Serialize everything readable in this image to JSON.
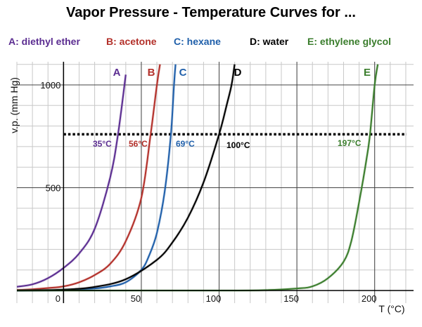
{
  "chart_data": {
    "type": "line",
    "title": "Vapor Pressure - Temperature Curves for ...",
    "xlabel": "T (°C)",
    "ylabel": "v.p. (mm Hg)",
    "xlim": [
      -30,
      225
    ],
    "ylim": [
      -10,
      1100
    ],
    "xticks": [
      0,
      50,
      100,
      150,
      200
    ],
    "yticks": [
      500,
      1000
    ],
    "grid": true,
    "reference_line": {
      "y": 760,
      "style": "dotted"
    },
    "legend_position": "top",
    "series": [
      {
        "letter": "A",
        "name": "A: diethyl ether",
        "color": "#5b2d91",
        "boiling_label": "35°C",
        "points": [
          [
            -30,
            18
          ],
          [
            -20,
            30
          ],
          [
            -10,
            60
          ],
          [
            0,
            110
          ],
          [
            10,
            180
          ],
          [
            20,
            300
          ],
          [
            30,
            550
          ],
          [
            35,
            760
          ],
          [
            40,
            1050
          ]
        ]
      },
      {
        "letter": "B",
        "name": "B: acetone",
        "color": "#b3302a",
        "boiling_label": "56°C",
        "points": [
          [
            -30,
            3
          ],
          [
            -20,
            6
          ],
          [
            -10,
            12
          ],
          [
            0,
            20
          ],
          [
            10,
            40
          ],
          [
            20,
            75
          ],
          [
            30,
            130
          ],
          [
            40,
            240
          ],
          [
            50,
            450
          ],
          [
            56,
            760
          ],
          [
            60,
            1000
          ],
          [
            62,
            1100
          ]
        ]
      },
      {
        "letter": "C",
        "name": "C: hexane",
        "color": "#1f5faa",
        "boiling_label": "69°C",
        "points": [
          [
            -30,
            0
          ],
          [
            0,
            2
          ],
          [
            20,
            10
          ],
          [
            30,
            20
          ],
          [
            40,
            40
          ],
          [
            50,
            100
          ],
          [
            55,
            170
          ],
          [
            60,
            280
          ],
          [
            65,
            480
          ],
          [
            69,
            760
          ],
          [
            71,
            1000
          ],
          [
            72,
            1100
          ]
        ]
      },
      {
        "letter": "D",
        "name": "D: water",
        "color": "#000000",
        "boiling_label": "100°C",
        "points": [
          [
            -30,
            0
          ],
          [
            0,
            4.6
          ],
          [
            20,
            17.5
          ],
          [
            40,
            55
          ],
          [
            60,
            149
          ],
          [
            70,
            234
          ],
          [
            80,
            355
          ],
          [
            90,
            526
          ],
          [
            100,
            760
          ],
          [
            105,
            906
          ],
          [
            108,
            1000
          ],
          [
            110,
            1100
          ]
        ]
      },
      {
        "letter": "E",
        "name": "E: ethylene glycol",
        "color": "#3a7d2c",
        "boiling_label": "197°C",
        "points": [
          [
            -30,
            0
          ],
          [
            100,
            0
          ],
          [
            130,
            2
          ],
          [
            150,
            10
          ],
          [
            160,
            20
          ],
          [
            170,
            60
          ],
          [
            180,
            140
          ],
          [
            185,
            240
          ],
          [
            190,
            430
          ],
          [
            195,
            650
          ],
          [
            197,
            760
          ],
          [
            200,
            1000
          ],
          [
            202,
            1100
          ]
        ]
      }
    ]
  }
}
